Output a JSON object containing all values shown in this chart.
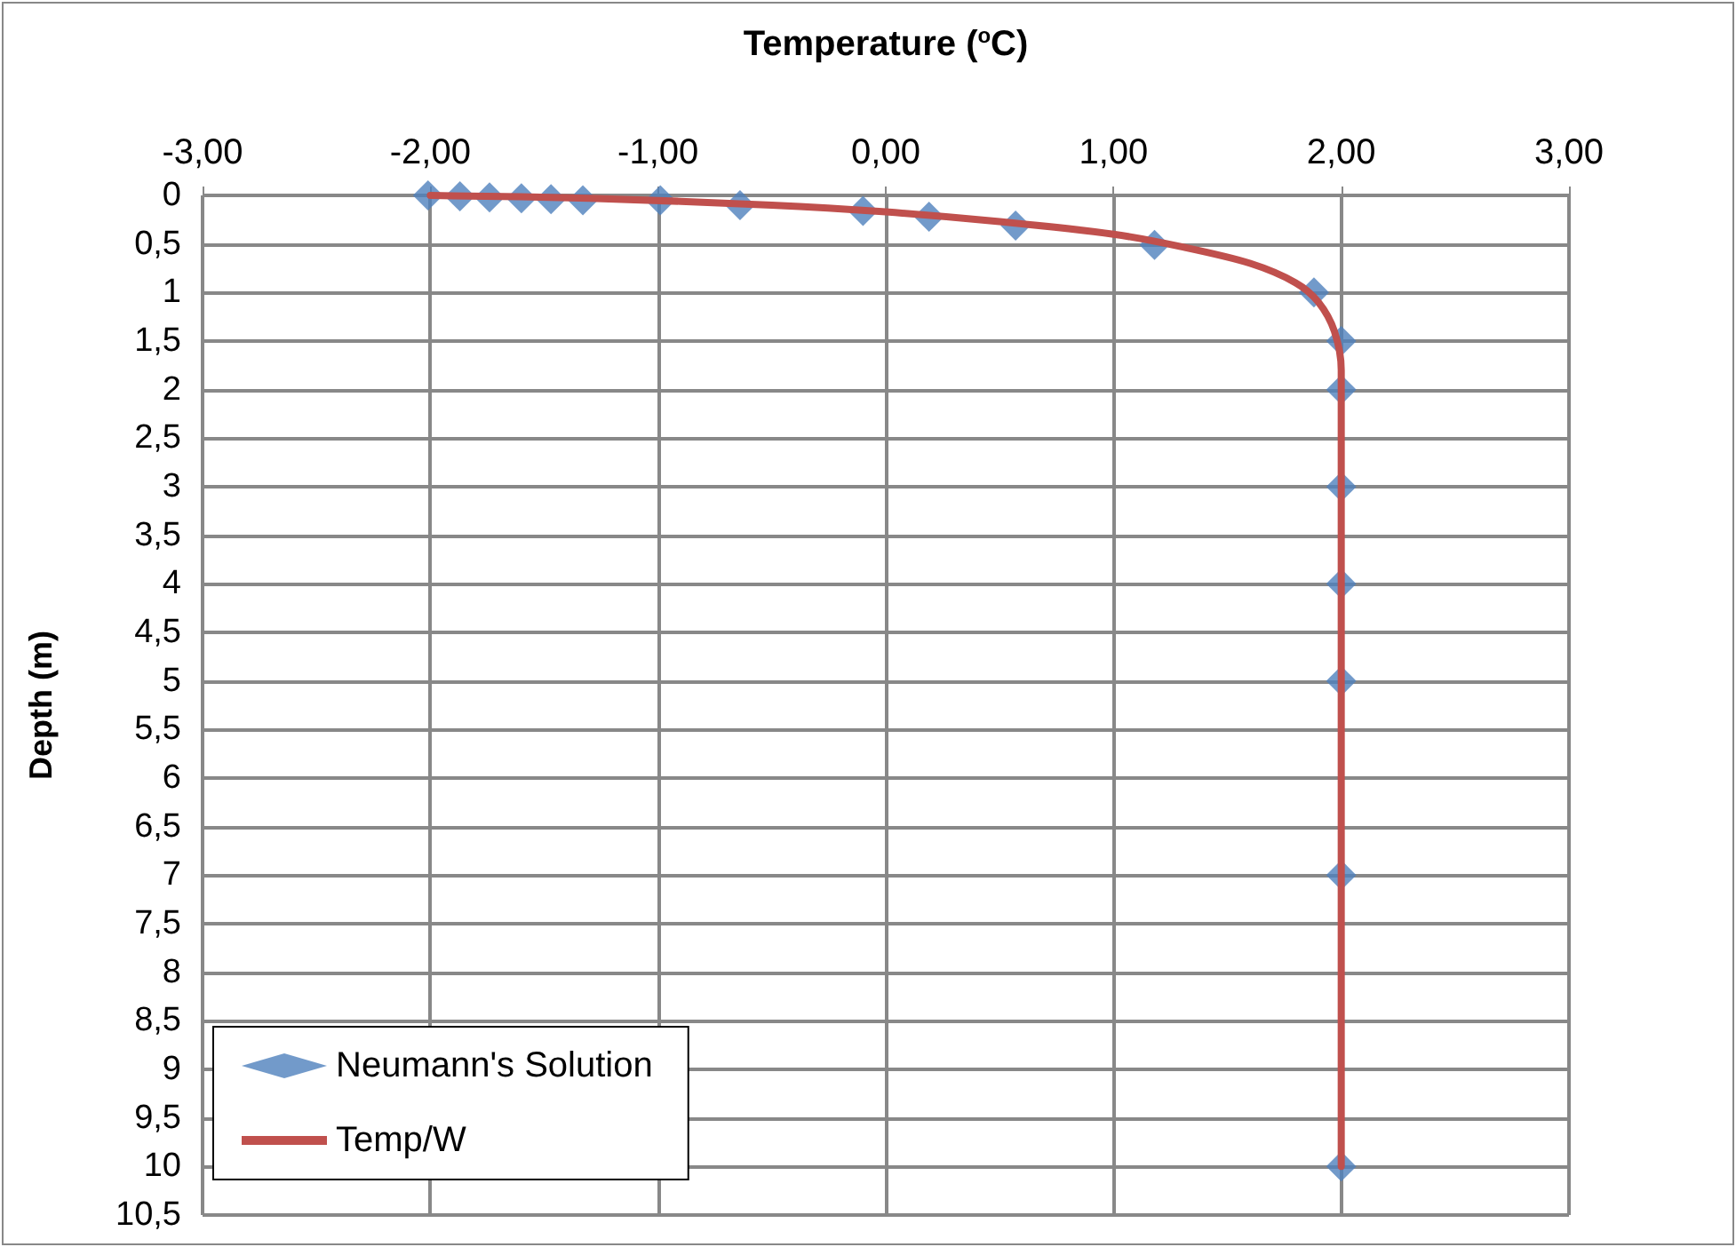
{
  "chart_data": {
    "type": "scatter",
    "xlabel": "Temperature ($^{o}$C)",
    "ylabel": "Depth (m)",
    "xlim": [
      -3,
      3
    ],
    "xticks": [
      {
        "value": -3,
        "label": "-3,00"
      },
      {
        "value": -2,
        "label": "-2,00"
      },
      {
        "value": -1,
        "label": "-1,00"
      },
      {
        "value": 0,
        "label": "0,00"
      },
      {
        "value": 1,
        "label": "1,00"
      },
      {
        "value": 2,
        "label": "2,00"
      },
      {
        "value": 3,
        "label": "3,00"
      }
    ],
    "ylim": [
      10.5,
      0
    ],
    "yticks": [
      0,
      {
        "value": 0.5,
        "label": "0,5"
      },
      1,
      {
        "value": 1.5,
        "label": "1,5"
      },
      2,
      {
        "value": 2.5,
        "label": "2,5"
      },
      3,
      {
        "value": 3.5,
        "label": "3,5"
      },
      4,
      {
        "value": 4.5,
        "label": "4,5"
      },
      5,
      {
        "value": 5.5,
        "label": "5,5"
      },
      6,
      {
        "value": 6.5,
        "label": "6,5"
      },
      7,
      {
        "value": 7.5,
        "label": "7,5"
      },
      8,
      {
        "value": 8.5,
        "label": "8,5"
      },
      9,
      {
        "value": 9.5,
        "label": "9,5"
      },
      10,
      {
        "value": 10.5,
        "label": "10,5"
      }
    ],
    "grid": true,
    "legend": "bottom left",
    "series": [
      {
        "name": "Neumann's Solution",
        "marker": "diamond",
        "color": "#4f81bd",
        "x": [
          -2.01,
          -1.87,
          -1.74,
          -1.6,
          -1.47,
          -1.33,
          -0.99,
          -0.64,
          -0.1,
          0.19,
          0.57,
          1.18,
          1.88,
          2.0,
          2.0,
          2.0,
          2.0,
          2.0,
          2.0,
          2.0
        ],
        "values": [
          0,
          0.01,
          0.02,
          0.03,
          0.04,
          0.05,
          0.05,
          0.1,
          0.16,
          0.22,
          0.31,
          0.51,
          1.0,
          1.5,
          2,
          3,
          4,
          5,
          7,
          10
        ]
      },
      {
        "name": "Temp/W",
        "type": "line",
        "marker": "none",
        "line_style": "solid",
        "color": "#c0504d",
        "x": [
          -2,
          -1.3,
          -0.5,
          0,
          0.5,
          1.0,
          1.3,
          1.6,
          1.8,
          1.9,
          1.97,
          2.0,
          2.0
        ],
        "values": [
          0,
          0.03,
          0.1,
          0.17,
          0.27,
          0.4,
          0.53,
          0.7,
          0.9,
          1.1,
          1.4,
          1.8,
          10
        ]
      }
    ]
  }
}
